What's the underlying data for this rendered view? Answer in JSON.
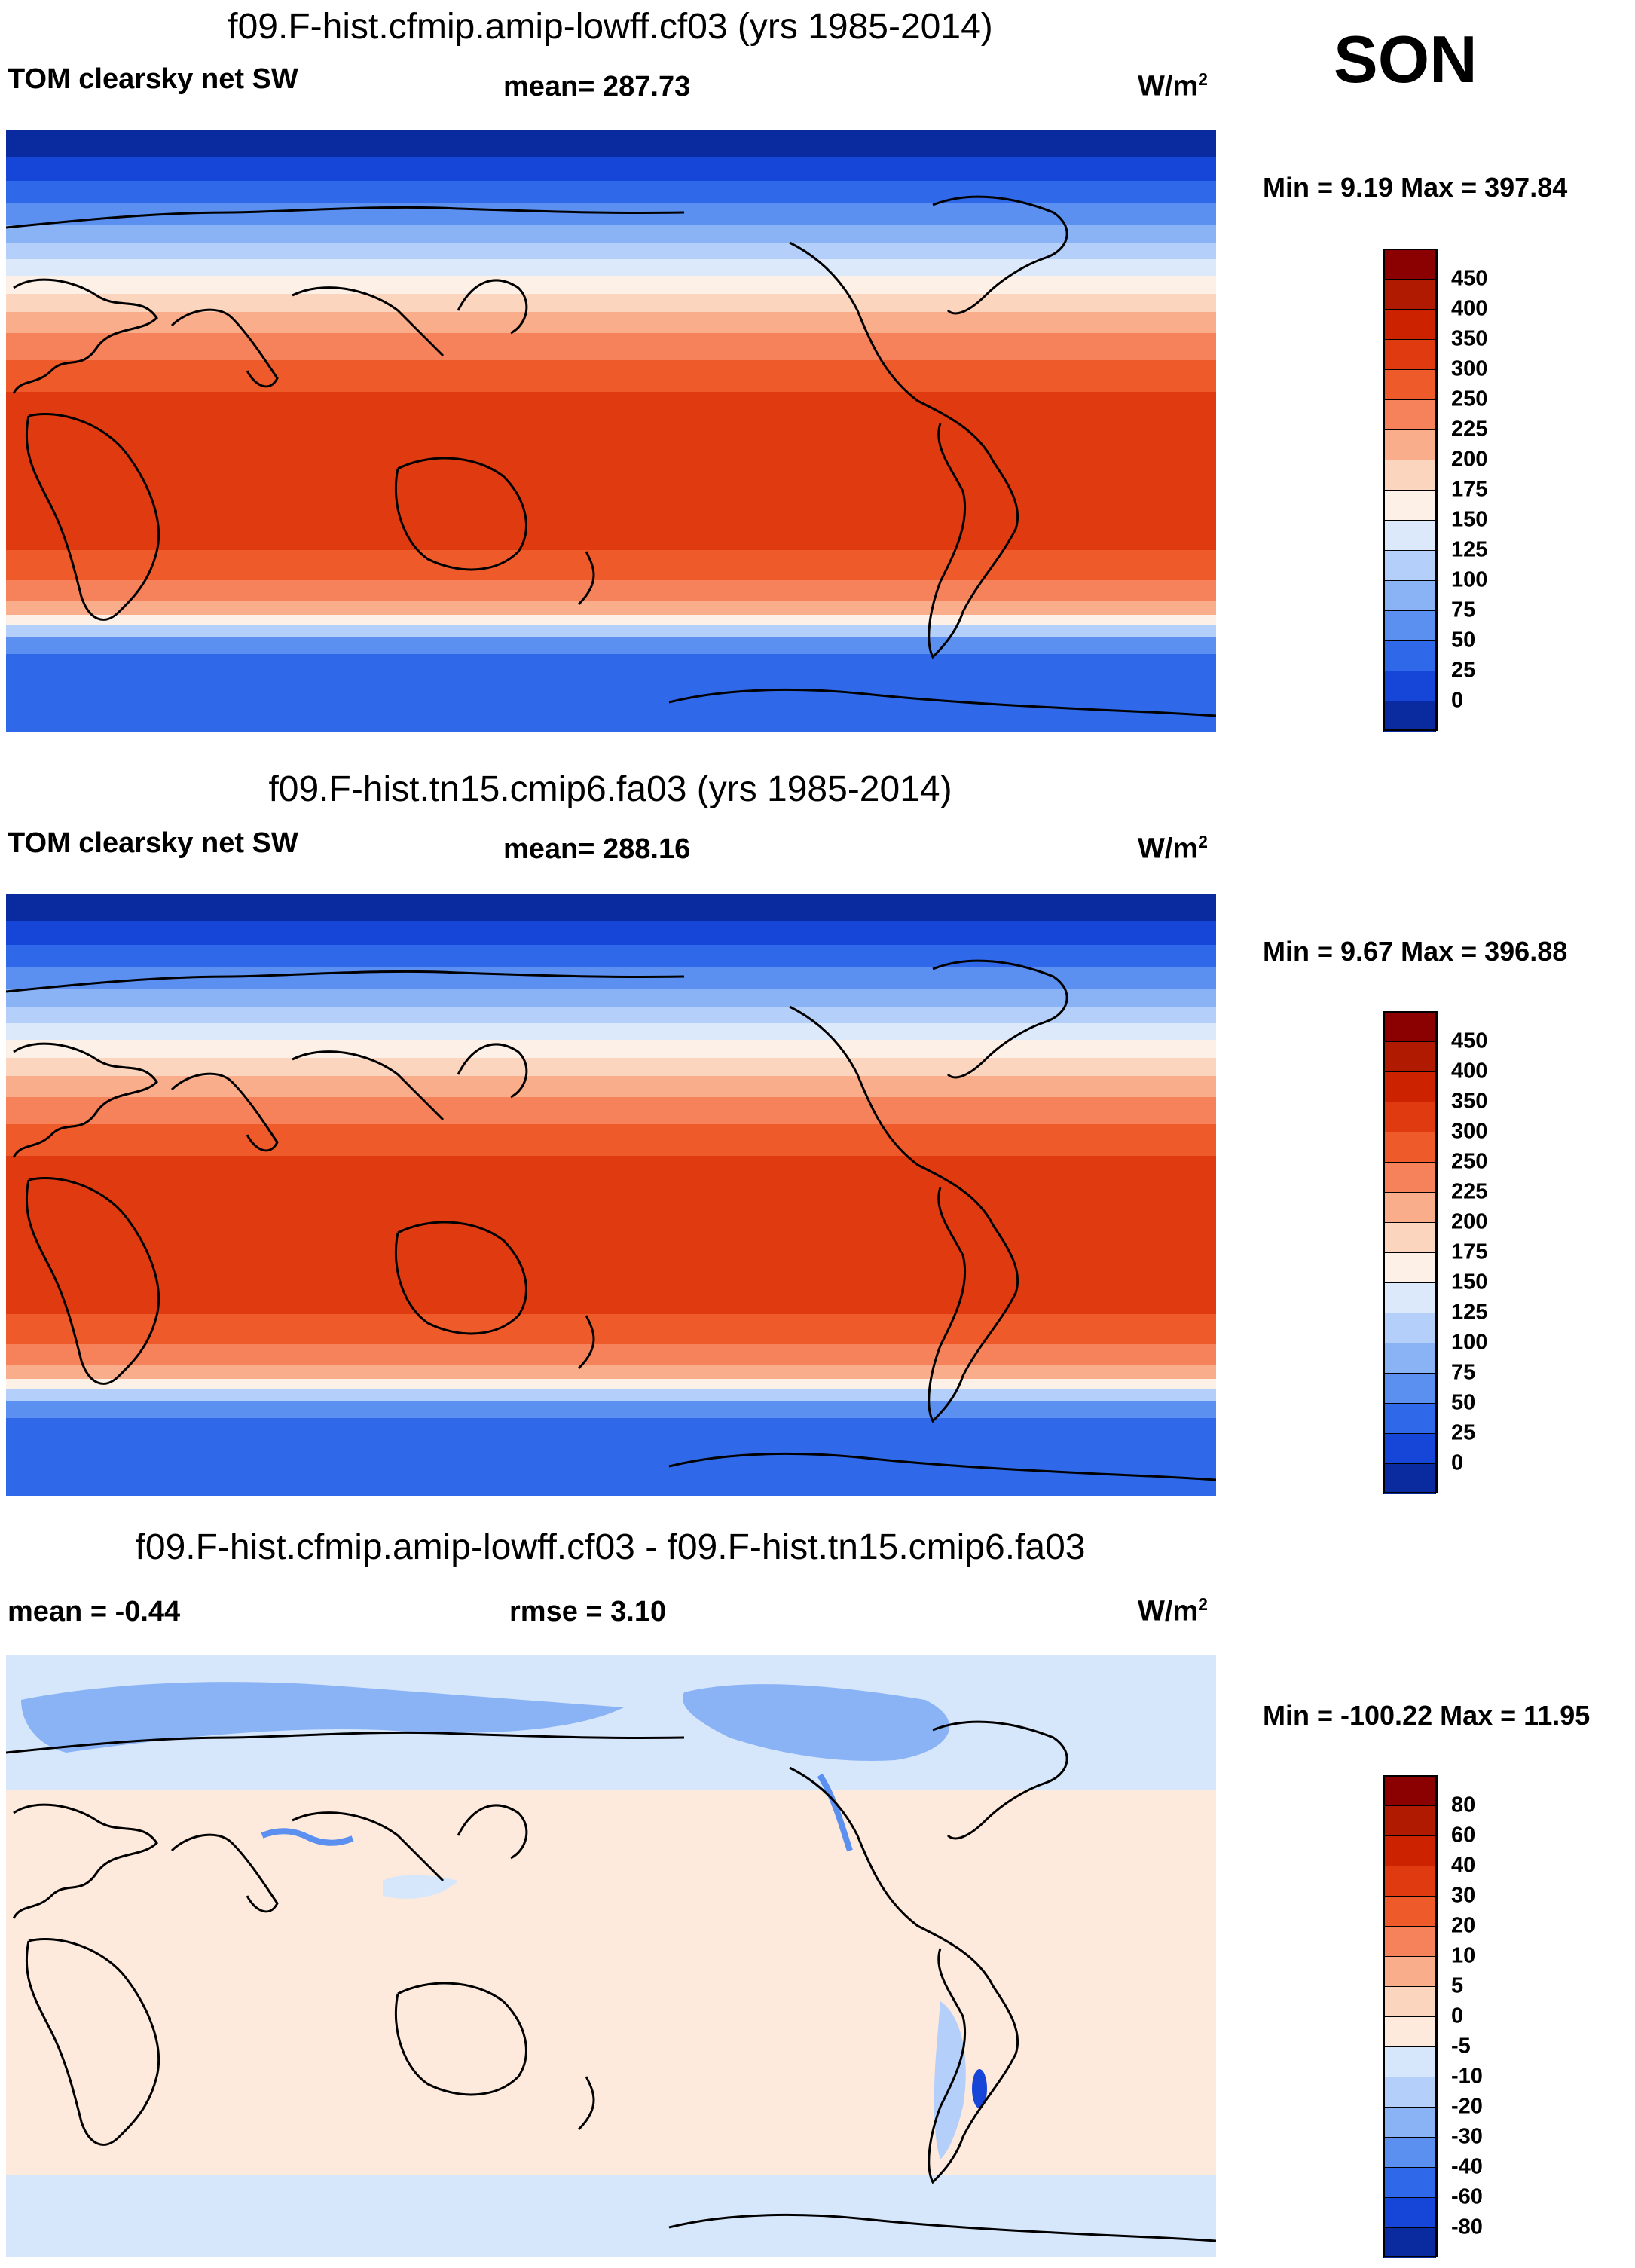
{
  "season": "SON",
  "units_base": "W/m",
  "units_exp": "2",
  "panels": [
    {
      "title": "f09.F-hist.cfmip.amip-lowff.cf03 (yrs 1985-2014)",
      "left_label": "TOM clearsky net SW",
      "center_label": "mean= 287.73",
      "min_max": "Min =   9.19 Max = 397.84"
    },
    {
      "title": "f09.F-hist.tn15.cmip6.fa03 (yrs 1985-2014)",
      "left_label": "TOM clearsky net SW",
      "center_label": "mean= 288.16",
      "min_max": "Min =   9.67 Max = 396.88"
    },
    {
      "title": "f09.F-hist.cfmip.amip-lowff.cf03 - f09.F-hist.tn15.cmip6.fa03",
      "left_label": "mean =  -0.44",
      "center_label": "rmse =    3.10",
      "min_max": "Min = -100.22 Max =  11.95"
    }
  ],
  "colorbars": {
    "absolute": {
      "labels": [
        "450",
        "400",
        "350",
        "300",
        "250",
        "225",
        "200",
        "175",
        "150",
        "125",
        "100",
        "75",
        "50",
        "25",
        "0"
      ],
      "colors": [
        "#8b0000",
        "#b01a00",
        "#cc2200",
        "#e03a10",
        "#ee5a2a",
        "#f5825a",
        "#f9ad8a",
        "#fcd5bf",
        "#fdf0e6",
        "#dbe9fb",
        "#b4cffa",
        "#8ab3f6",
        "#5b8ff0",
        "#2f68e8",
        "#1646d8",
        "#0a2aa0"
      ]
    },
    "difference": {
      "labels": [
        "80",
        "60",
        "40",
        "30",
        "20",
        "10",
        "5",
        "0",
        "-5",
        "-10",
        "-20",
        "-30",
        "-40",
        "-60",
        "-80"
      ],
      "colors": [
        "#8b0000",
        "#b01a00",
        "#cc2200",
        "#e03a10",
        "#ee5a2a",
        "#f5825a",
        "#f9ad8a",
        "#fcd5bf",
        "#fdeadc",
        "#d6e6fb",
        "#b4cffa",
        "#8ab3f6",
        "#5b8ff0",
        "#2f68e8",
        "#1646d8",
        "#0a2aa0"
      ]
    }
  }
}
